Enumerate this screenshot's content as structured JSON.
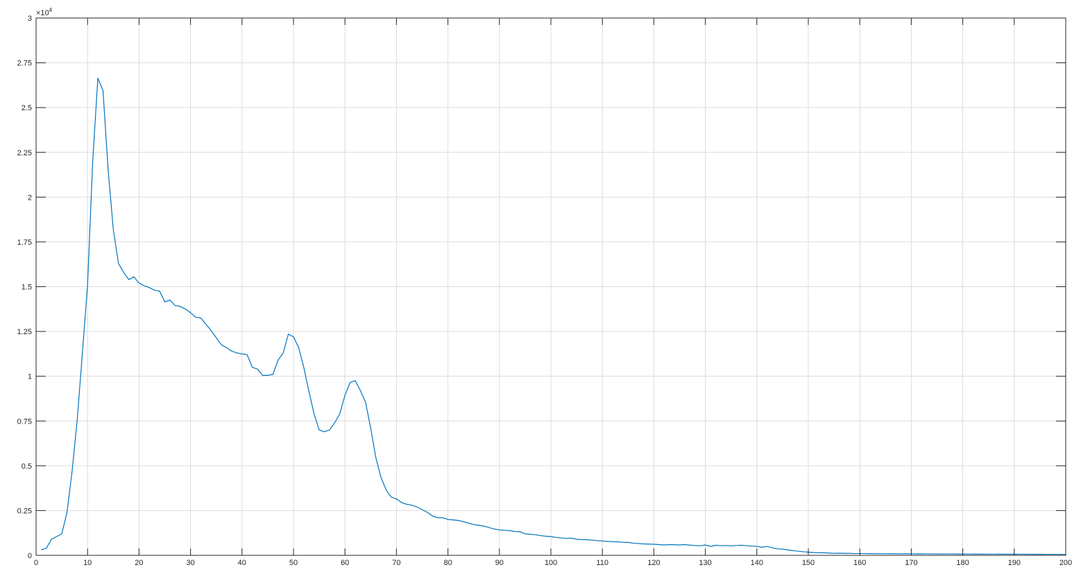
{
  "chart_data": {
    "type": "line",
    "title": "",
    "xlabel": "",
    "ylabel": "",
    "y_exponent_label": "×10",
    "y_exponent_power": "4",
    "xlim": [
      0,
      200
    ],
    "ylim": [
      0,
      3
    ],
    "grid": true,
    "box": true,
    "series_color": "#0072BD",
    "x_ticks": [
      "0",
      "10",
      "20",
      "30",
      "40",
      "50",
      "60",
      "70",
      "80",
      "90",
      "100",
      "110",
      "120",
      "130",
      "140",
      "150",
      "160",
      "170",
      "180",
      "190",
      "200"
    ],
    "y_ticks": [
      "0",
      "0.25",
      "0.5",
      "0.75",
      "1",
      "1.25",
      "1.5",
      "1.75",
      "2",
      "2.25",
      "2.5",
      "2.75",
      "3"
    ],
    "x_start": 1,
    "x_step": 1,
    "values": [
      0.03,
      0.04,
      0.09,
      0.105,
      0.12,
      0.24,
      0.47,
      0.76,
      1.13,
      1.51,
      2.2,
      2.665,
      2.595,
      2.15,
      1.82,
      1.63,
      1.58,
      1.54,
      1.555,
      1.52,
      1.505,
      1.495,
      1.48,
      1.475,
      1.415,
      1.425,
      1.395,
      1.39,
      1.375,
      1.355,
      1.33,
      1.325,
      1.29,
      1.255,
      1.215,
      1.175,
      1.16,
      1.14,
      1.13,
      1.125,
      1.12,
      1.05,
      1.04,
      1.005,
      1.005,
      1.01,
      1.09,
      1.13,
      1.235,
      1.22,
      1.16,
      1.05,
      0.915,
      0.79,
      0.7,
      0.69,
      0.7,
      0.74,
      0.79,
      0.895,
      0.965,
      0.975,
      0.92,
      0.855,
      0.71,
      0.545,
      0.435,
      0.365,
      0.325,
      0.315,
      0.295,
      0.285,
      0.28,
      0.27,
      0.255,
      0.24,
      0.22,
      0.21,
      0.21,
      0.2,
      0.198,
      0.195,
      0.188,
      0.18,
      0.172,
      0.168,
      0.163,
      0.155,
      0.147,
      0.142,
      0.14,
      0.138,
      0.133,
      0.132,
      0.12,
      0.118,
      0.115,
      0.11,
      0.107,
      0.105,
      0.1,
      0.097,
      0.095,
      0.096,
      0.09,
      0.088,
      0.087,
      0.085,
      0.082,
      0.08,
      0.078,
      0.077,
      0.075,
      0.073,
      0.072,
      0.068,
      0.066,
      0.064,
      0.063,
      0.062,
      0.06,
      0.058,
      0.06,
      0.059,
      0.058,
      0.06,
      0.057,
      0.055,
      0.053,
      0.058,
      0.05,
      0.056,
      0.054,
      0.055,
      0.053,
      0.055,
      0.056,
      0.054,
      0.052,
      0.05,
      0.045,
      0.05,
      0.042,
      0.036,
      0.035,
      0.03,
      0.027,
      0.023,
      0.02,
      0.018,
      0.016,
      0.015,
      0.014,
      0.013,
      0.011,
      0.012,
      0.011,
      0.011,
      0.01,
      0.01,
      0.01,
      0.0095,
      0.0095,
      0.009,
      0.009,
      0.0092,
      0.0088,
      0.0085,
      0.0087,
      0.0085,
      0.0083,
      0.0085,
      0.008,
      0.008,
      0.0078,
      0.0078,
      0.0075,
      0.0077,
      0.0073,
      0.0072,
      0.007,
      0.0072,
      0.0068,
      0.0068,
      0.0066,
      0.0065,
      0.0067,
      0.0063,
      0.0062,
      0.0062,
      0.006,
      0.006,
      0.0058,
      0.0058,
      0.0057,
      0.0056,
      0.0056,
      0.0055,
      0.0055,
      0.0055
    ]
  }
}
